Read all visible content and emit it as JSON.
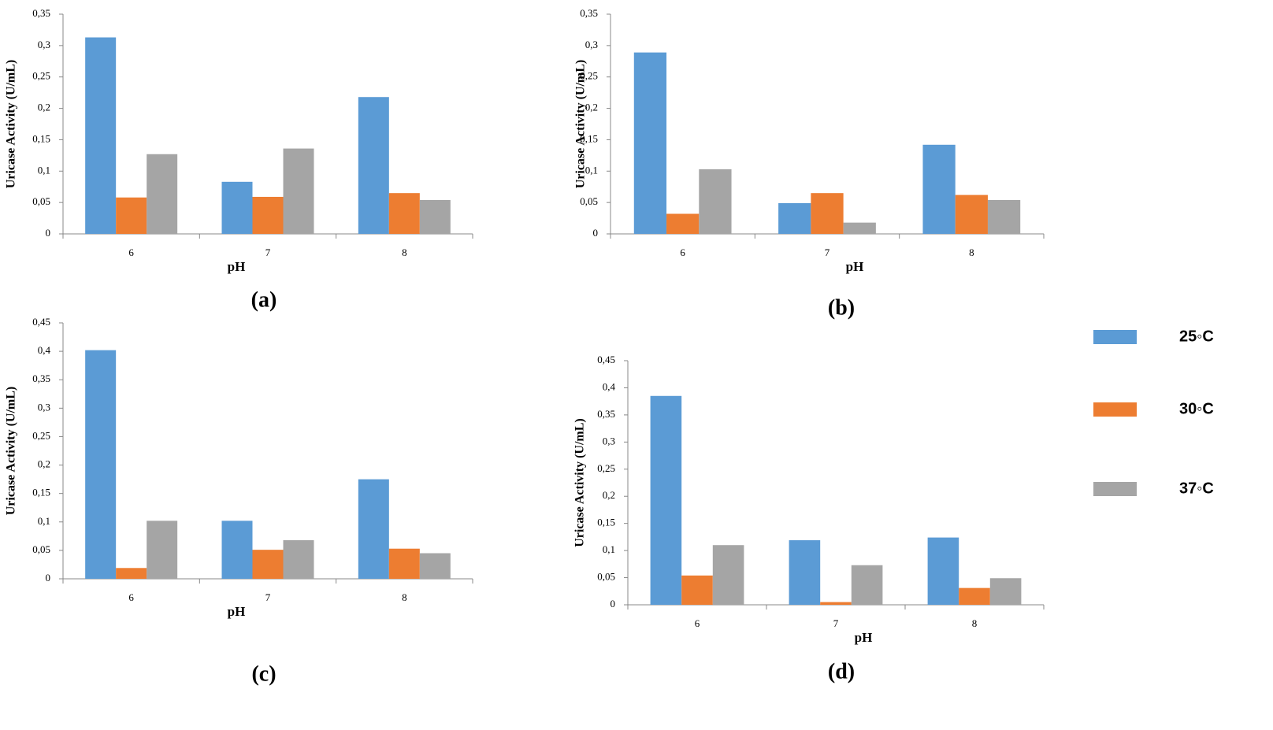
{
  "legend": [
    {
      "name": "25◦C",
      "color": "#5b9bd5"
    },
    {
      "name": "30◦C",
      "color": "#ed7d31"
    },
    {
      "name": "37◦C",
      "color": "#a5a5a5"
    }
  ],
  "chart_data": [
    {
      "type": "bar",
      "caption": "(a)",
      "x_label": "pH",
      "y_label": "Uricase Activity (U/mL)",
      "categories": [
        "6",
        "7",
        "8"
      ],
      "series": [
        {
          "values": [
            0.313,
            0.083,
            0.218
          ]
        },
        {
          "values": [
            0.058,
            0.059,
            0.065
          ]
        },
        {
          "values": [
            0.127,
            0.136,
            0.054
          ]
        }
      ],
      "ylim": [
        0,
        0.35
      ],
      "yticks": [
        0,
        {
          "value": 0.05,
          "label": "0,05"
        },
        {
          "value": 0.1,
          "label": "0,1"
        },
        {
          "value": 0.15,
          "label": "0,15"
        },
        {
          "value": 0.2,
          "label": "0,2"
        },
        {
          "value": 0.25,
          "label": "0,25"
        },
        {
          "value": 0.3,
          "label": "0,3"
        },
        {
          "value": 0.35,
          "label": "0,35"
        }
      ]
    },
    {
      "type": "bar",
      "caption": "(b)",
      "x_label": "pH",
      "y_label": "Uricase Activity (U/mL)",
      "categories": [
        "6",
        "7",
        "8"
      ],
      "series": [
        {
          "values": [
            0.289,
            0.049,
            0.142
          ]
        },
        {
          "values": [
            0.032,
            0.065,
            0.062
          ]
        },
        {
          "values": [
            0.103,
            0.018,
            0.054
          ]
        }
      ],
      "ylim": [
        0,
        0.35
      ],
      "yticks": [
        0,
        {
          "value": 0.05,
          "label": "0,05"
        },
        {
          "value": 0.1,
          "label": "0,1"
        },
        {
          "value": 0.15,
          "label": "0,15"
        },
        {
          "value": 0.2,
          "label": "0,2"
        },
        {
          "value": 0.25,
          "label": "0,25"
        },
        {
          "value": 0.3,
          "label": "0,3"
        },
        {
          "value": 0.35,
          "label": "0,35"
        }
      ]
    },
    {
      "type": "bar",
      "caption": "(c)",
      "x_label": "pH",
      "y_label": "Uricase Activity   (U/mL)",
      "categories": [
        "6",
        "7",
        "8"
      ],
      "series": [
        {
          "values": [
            0.402,
            0.102,
            0.175
          ]
        },
        {
          "values": [
            0.019,
            0.051,
            0.053
          ]
        },
        {
          "values": [
            0.102,
            0.068,
            0.045
          ]
        }
      ],
      "ylim": [
        0,
        0.45
      ],
      "yticks": [
        0,
        {
          "value": 0.05,
          "label": "0,05"
        },
        {
          "value": 0.1,
          "label": "0,1"
        },
        {
          "value": 0.15,
          "label": "0,15"
        },
        {
          "value": 0.2,
          "label": "0,2"
        },
        {
          "value": 0.25,
          "label": "0,25"
        },
        {
          "value": 0.3,
          "label": "0,3"
        },
        {
          "value": 0.35,
          "label": "0,35"
        },
        {
          "value": 0.4,
          "label": "0,4"
        },
        {
          "value": 0.45,
          "label": "0,45"
        }
      ]
    },
    {
      "type": "bar",
      "caption": "(d)",
      "x_label": "pH",
      "y_label": "Uricase Activity (U/mL)",
      "categories": [
        "6",
        "7",
        "8"
      ],
      "series": [
        {
          "values": [
            0.385,
            0.119,
            0.124
          ]
        },
        {
          "values": [
            0.054,
            0.005,
            0.031
          ]
        },
        {
          "values": [
            0.11,
            0.073,
            0.049
          ]
        }
      ],
      "ylim": [
        0,
        0.45
      ],
      "yticks": [
        0,
        {
          "value": 0.05,
          "label": "0,05"
        },
        {
          "value": 0.1,
          "label": "0,1"
        },
        {
          "value": 0.15,
          "label": "0,15"
        },
        {
          "value": 0.2,
          "label": "0,2"
        },
        {
          "value": 0.25,
          "label": "0,25"
        },
        {
          "value": 0.3,
          "label": "0,3"
        },
        {
          "value": 0.35,
          "label": "0,35"
        },
        {
          "value": 0.4,
          "label": "0,4"
        },
        {
          "value": 0.45,
          "label": "0,45"
        }
      ]
    }
  ]
}
